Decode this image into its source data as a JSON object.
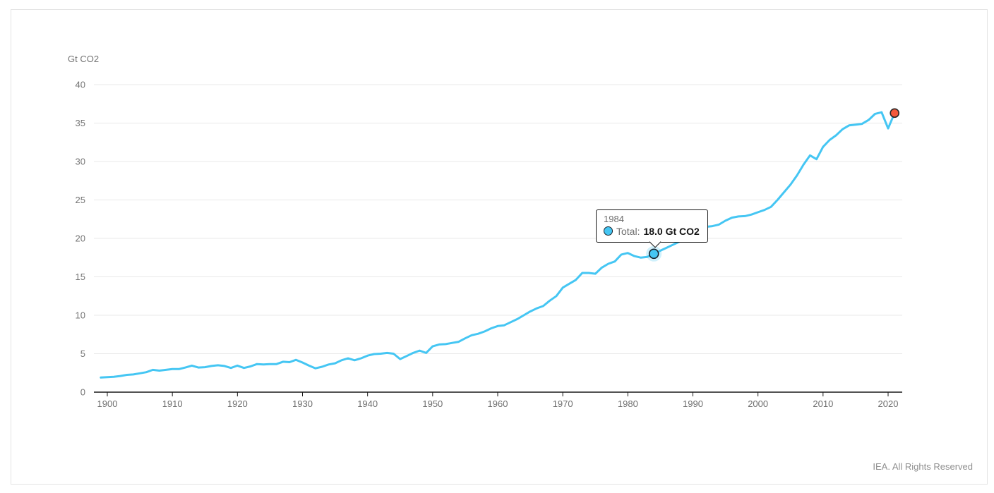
{
  "card": {
    "footer": "IEA. All Rights Reserved"
  },
  "tooltip": {
    "year": "1984",
    "series_label": "Total:",
    "value": "18.0 Gt CO2",
    "marker_color": "#45c6f3"
  },
  "chart_data": {
    "type": "line",
    "title": "",
    "xlabel": "",
    "ylabel": "Gt CO2",
    "ylim": [
      0,
      40
    ],
    "xlim": [
      1899,
      2022
    ],
    "grid": "horizontal",
    "legend": "none",
    "yticks": [
      0,
      5,
      10,
      15,
      20,
      25,
      30,
      35,
      40
    ],
    "xticks": [
      1900,
      1910,
      1920,
      1930,
      1940,
      1950,
      1960,
      1970,
      1980,
      1990,
      2000,
      2010,
      2020
    ],
    "years": [
      1899,
      1900,
      1901,
      1902,
      1903,
      1904,
      1905,
      1906,
      1907,
      1908,
      1909,
      1910,
      1911,
      1912,
      1913,
      1914,
      1915,
      1916,
      1917,
      1918,
      1919,
      1920,
      1921,
      1922,
      1923,
      1924,
      1925,
      1926,
      1927,
      1928,
      1929,
      1930,
      1931,
      1932,
      1933,
      1934,
      1935,
      1936,
      1937,
      1938,
      1939,
      1940,
      1941,
      1942,
      1943,
      1944,
      1945,
      1946,
      1947,
      1948,
      1949,
      1950,
      1951,
      1952,
      1953,
      1954,
      1955,
      1956,
      1957,
      1958,
      1959,
      1960,
      1961,
      1962,
      1963,
      1964,
      1965,
      1966,
      1967,
      1968,
      1969,
      1970,
      1971,
      1972,
      1973,
      1974,
      1975,
      1976,
      1977,
      1978,
      1979,
      1980,
      1981,
      1982,
      1983,
      1984,
      1985,
      1986,
      1987,
      1988,
      1989,
      1990,
      1991,
      1992,
      1993,
      1994,
      1995,
      1996,
      1997,
      1998,
      1999,
      2000,
      2001,
      2002,
      2003,
      2004,
      2005,
      2006,
      2007,
      2008,
      2009,
      2010,
      2011,
      2012,
      2013,
      2014,
      2015,
      2016,
      2017,
      2018,
      2019,
      2020,
      2021
    ],
    "series": [
      {
        "name": "Total",
        "color": "#45c6f3",
        "values": [
          1.9,
          1.95,
          2.0,
          2.1,
          2.25,
          2.3,
          2.45,
          2.6,
          2.9,
          2.8,
          2.9,
          3.0,
          3.0,
          3.2,
          3.45,
          3.2,
          3.25,
          3.4,
          3.5,
          3.4,
          3.15,
          3.45,
          3.15,
          3.35,
          3.65,
          3.6,
          3.65,
          3.65,
          3.95,
          3.9,
          4.2,
          3.85,
          3.45,
          3.1,
          3.3,
          3.6,
          3.75,
          4.15,
          4.4,
          4.15,
          4.4,
          4.75,
          4.95,
          5.0,
          5.1,
          5.0,
          4.3,
          4.7,
          5.1,
          5.4,
          5.1,
          5.95,
          6.2,
          6.25,
          6.4,
          6.55,
          7.0,
          7.4,
          7.6,
          7.9,
          8.3,
          8.6,
          8.7,
          9.1,
          9.5,
          10.0,
          10.5,
          10.9,
          11.2,
          11.9,
          12.5,
          13.6,
          14.1,
          14.6,
          15.5,
          15.5,
          15.4,
          16.2,
          16.7,
          17.0,
          17.9,
          18.1,
          17.7,
          17.5,
          17.6,
          18.0,
          18.4,
          18.8,
          19.2,
          19.6,
          20.2,
          20.9,
          21.4,
          21.5,
          21.6,
          21.8,
          22.3,
          22.7,
          22.85,
          22.9,
          23.1,
          23.4,
          23.7,
          24.1,
          25.0,
          26.0,
          27.0,
          28.2,
          29.6,
          30.8,
          30.3,
          31.9,
          32.8,
          33.4,
          34.2,
          34.7,
          34.8,
          34.9,
          35.4,
          36.2,
          36.4,
          34.3,
          36.3
        ]
      }
    ],
    "highlight_point": {
      "year": 1984,
      "value": 18.0,
      "series": "Total"
    },
    "endpoint": {
      "year": 2021,
      "value": 36.3,
      "color": "#f4593b"
    }
  }
}
